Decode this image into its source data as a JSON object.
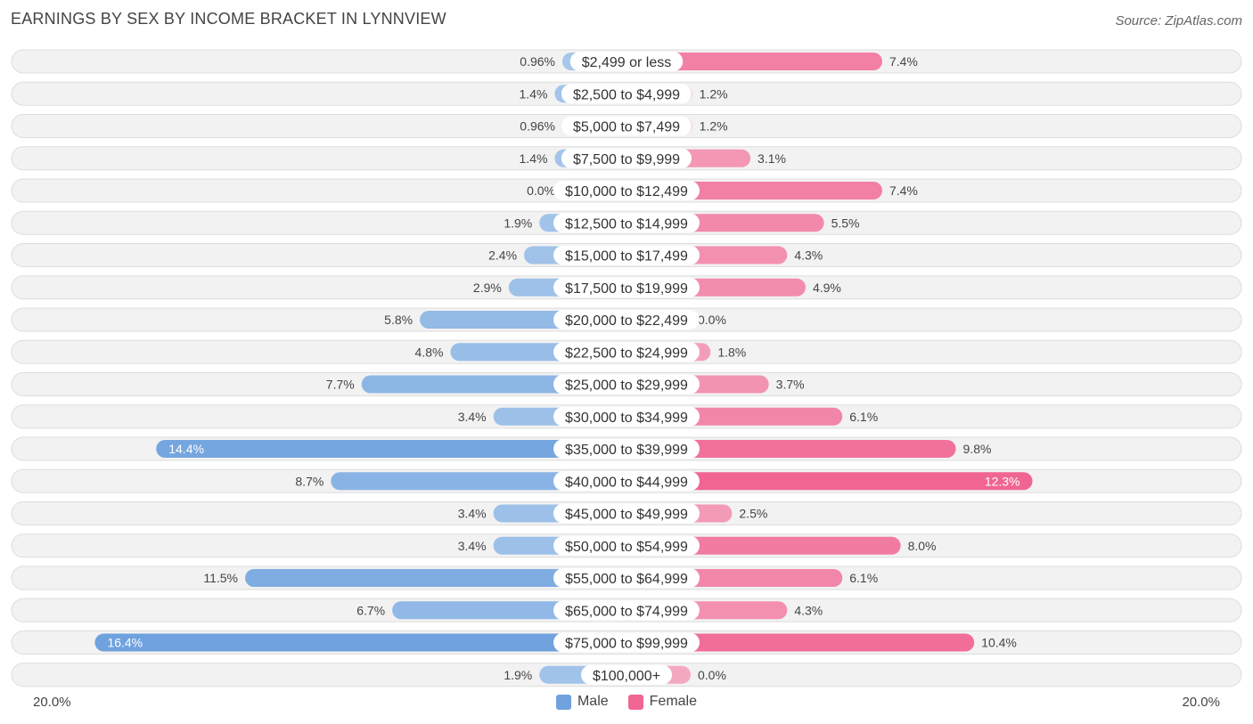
{
  "title": "EARNINGS BY SEX BY INCOME BRACKET IN LYNNVIEW",
  "source": "Source: ZipAtlas.com",
  "colors": {
    "male": "#6fa2de",
    "male_light": "#a9c8eb",
    "female": "#f06592",
    "female_light": "#f4a8c0"
  },
  "chart_data": {
    "type": "bar",
    "orientation": "horizontal-diverging",
    "title": "EARNINGS BY SEX BY INCOME BRACKET IN LYNNVIEW",
    "axis_max": 20.0,
    "axis_left_label": "20.0%",
    "axis_right_label": "20.0%",
    "categories": [
      "$2,499 or less",
      "$2,500 to $4,999",
      "$5,000 to $7,499",
      "$7,500 to $9,999",
      "$10,000 to $12,499",
      "$12,500 to $14,999",
      "$15,000 to $17,499",
      "$17,500 to $19,999",
      "$20,000 to $22,499",
      "$22,500 to $24,999",
      "$25,000 to $29,999",
      "$30,000 to $34,999",
      "$35,000 to $39,999",
      "$40,000 to $44,999",
      "$45,000 to $49,999",
      "$50,000 to $54,999",
      "$55,000 to $64,999",
      "$65,000 to $74,999",
      "$75,000 to $99,999",
      "$100,000+"
    ],
    "series": [
      {
        "name": "Male",
        "values": [
          0.96,
          1.4,
          0.96,
          1.4,
          0.0,
          1.9,
          2.4,
          2.9,
          5.8,
          4.8,
          7.7,
          3.4,
          14.4,
          8.7,
          3.4,
          3.4,
          11.5,
          6.7,
          16.4,
          1.9
        ],
        "labels": [
          "0.96%",
          "1.4%",
          "0.96%",
          "1.4%",
          "0.0%",
          "1.9%",
          "2.4%",
          "2.9%",
          "5.8%",
          "4.8%",
          "7.7%",
          "3.4%",
          "14.4%",
          "8.7%",
          "3.4%",
          "3.4%",
          "11.5%",
          "6.7%",
          "16.4%",
          "1.9%"
        ]
      },
      {
        "name": "Female",
        "values": [
          7.4,
          1.2,
          1.2,
          3.1,
          7.4,
          5.5,
          4.3,
          4.9,
          0.0,
          1.8,
          3.7,
          6.1,
          9.8,
          12.3,
          2.5,
          8.0,
          6.1,
          4.3,
          10.4,
          0.0
        ],
        "labels": [
          "7.4%",
          "1.2%",
          "1.2%",
          "3.1%",
          "7.4%",
          "5.5%",
          "4.3%",
          "4.9%",
          "0.0%",
          "1.8%",
          "3.7%",
          "6.1%",
          "9.8%",
          "12.3%",
          "2.5%",
          "8.0%",
          "6.1%",
          "4.3%",
          "10.4%",
          "0.0%"
        ]
      }
    ],
    "legend": [
      "Male",
      "Female"
    ],
    "legend_position": "bottom-center"
  }
}
